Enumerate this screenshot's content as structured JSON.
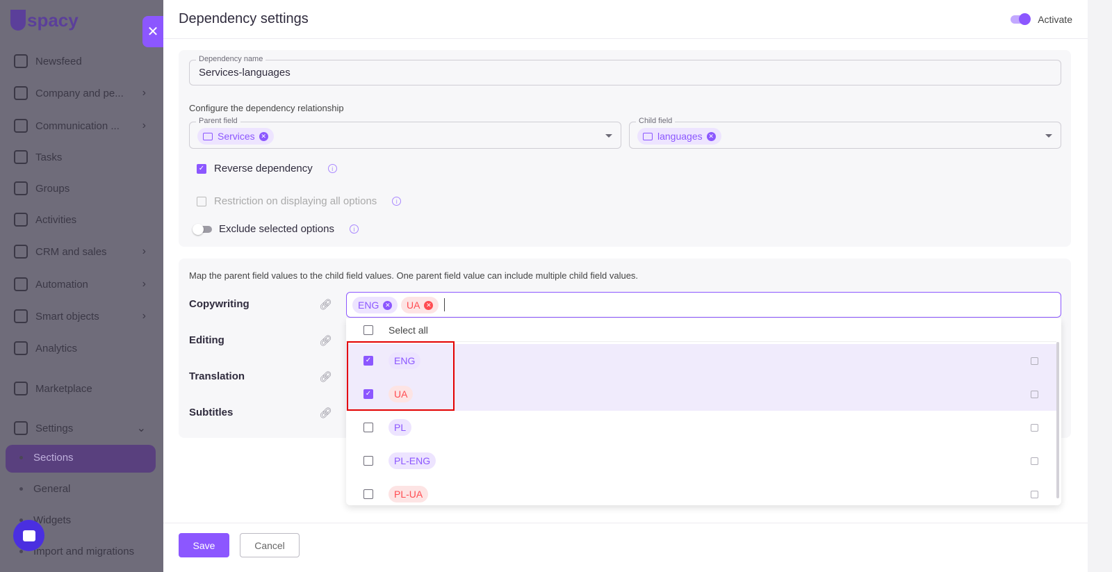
{
  "sidebar": {
    "logo": "spacy",
    "items": [
      {
        "label": "Newsfeed",
        "chev": false
      },
      {
        "label": "Company and pe...",
        "chev": true
      },
      {
        "label": "Communication ...",
        "chev": true
      },
      {
        "label": "Tasks",
        "chev": false
      },
      {
        "label": "Groups",
        "chev": false
      },
      {
        "label": "Activities",
        "chev": false
      },
      {
        "label": "CRM and sales",
        "chev": true
      },
      {
        "label": "Automation",
        "chev": true
      },
      {
        "label": "Smart objects",
        "chev": true
      },
      {
        "label": "Analytics",
        "chev": false
      },
      {
        "label": "Marketplace",
        "chev": false
      },
      {
        "label": "Settings",
        "chev": true
      }
    ],
    "sub_items": [
      "Sections",
      "General",
      "Widgets",
      "Import and migrations"
    ],
    "active_sub": "Sections"
  },
  "panel": {
    "title": "Dependency settings",
    "activate_label": "Activate",
    "activate_on": true,
    "name_legend": "Dependency name",
    "name_value": "Services-languages",
    "configure_label": "Configure the dependency relationship",
    "parent_legend": "Parent field",
    "parent_value": "Services",
    "child_legend": "Child field",
    "child_value": "languages",
    "reverse_label": "Reverse dependency",
    "reverse_checked": true,
    "restriction_label": "Restriction on displaying all options",
    "restriction_checked": false,
    "exclude_label": "Exclude selected options",
    "exclude_on": false,
    "map_description": "Map the parent field values to the child field values. One parent field value can include multiple child field values.",
    "parents": [
      "Copywriting",
      "Editing",
      "Translation",
      "Subtitles"
    ],
    "selected_chips": [
      "ENG",
      "UA"
    ],
    "select_all": "Select all",
    "options": [
      {
        "label": "ENG",
        "checked": true,
        "color": "purple"
      },
      {
        "label": "UA",
        "checked": true,
        "color": "red"
      },
      {
        "label": "PL",
        "checked": false,
        "color": "purple"
      },
      {
        "label": "PL-ENG",
        "checked": false,
        "color": "purple"
      },
      {
        "label": "PL-UA",
        "checked": false,
        "color": "red"
      }
    ],
    "save": "Save",
    "cancel": "Cancel"
  },
  "colors": {
    "accent": "#8c57ff",
    "error": "#ff4c51",
    "highlight": "#e30000"
  }
}
